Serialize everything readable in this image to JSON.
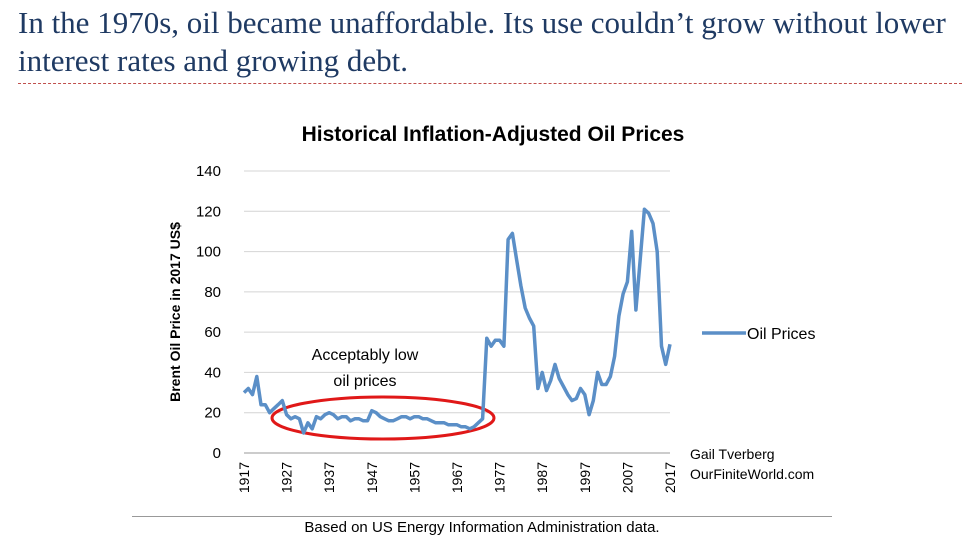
{
  "slide": {
    "title": "In the 1970s, oil became unaffordable. Its use couldn’t grow without lower interest rates and growing debt.",
    "footnote": "Based on US Energy Information Administration data.",
    "credit_lines": [
      "Gail Tverberg",
      "OurFiniteWorld.com"
    ]
  },
  "colors": {
    "line": "#5b8fc7",
    "ellipse": "#e01818",
    "title": "#1f3a63",
    "divider": "#c0504d"
  },
  "chart_data": {
    "type": "line",
    "title": "Historical Inflation-Adjusted Oil Prices",
    "xlabel": "",
    "ylabel": "Brent Oil Price in 2017 US$",
    "xlim": [
      1917,
      2017
    ],
    "ylim": [
      0,
      140
    ],
    "yticks": [
      0,
      20,
      40,
      60,
      80,
      100,
      120,
      140
    ],
    "xticks": [
      1917,
      1927,
      1937,
      1947,
      1957,
      1967,
      1977,
      1987,
      1997,
      2007,
      2017
    ],
    "grid": true,
    "legend": "right",
    "annotation": {
      "lines": [
        "Acceptably low",
        "oil prices"
      ]
    },
    "series": [
      {
        "name": "Oil Prices",
        "x": [
          1917,
          1918,
          1919,
          1920,
          1921,
          1922,
          1923,
          1924,
          1925,
          1926,
          1927,
          1928,
          1929,
          1930,
          1931,
          1932,
          1933,
          1934,
          1935,
          1936,
          1937,
          1938,
          1939,
          1940,
          1941,
          1942,
          1943,
          1944,
          1945,
          1946,
          1947,
          1948,
          1949,
          1950,
          1951,
          1952,
          1953,
          1954,
          1955,
          1956,
          1957,
          1958,
          1959,
          1960,
          1961,
          1962,
          1963,
          1964,
          1965,
          1966,
          1967,
          1968,
          1969,
          1970,
          1971,
          1972,
          1973,
          1974,
          1975,
          1976,
          1977,
          1978,
          1979,
          1980,
          1981,
          1982,
          1983,
          1984,
          1985,
          1986,
          1987,
          1988,
          1989,
          1990,
          1991,
          1992,
          1993,
          1994,
          1995,
          1996,
          1997,
          1998,
          1999,
          2000,
          2001,
          2002,
          2003,
          2004,
          2005,
          2006,
          2007,
          2008,
          2009,
          2010,
          2011,
          2012,
          2013,
          2014,
          2015,
          2016,
          2017
        ],
        "values": [
          30,
          32,
          29,
          38,
          24,
          24,
          20,
          22,
          24,
          26,
          19,
          17,
          18,
          17,
          10,
          15,
          12,
          18,
          17,
          19,
          20,
          19,
          17,
          18,
          18,
          16,
          17,
          17,
          16,
          16,
          21,
          20,
          18,
          17,
          16,
          16,
          17,
          18,
          18,
          17,
          18,
          18,
          17,
          17,
          16,
          15,
          15,
          15,
          14,
          14,
          14,
          13,
          13,
          12,
          13,
          15,
          17,
          57,
          53,
          56,
          56,
          53,
          106,
          109,
          96,
          83,
          72,
          67,
          63,
          32,
          40,
          31,
          36,
          44,
          37,
          33,
          29,
          26,
          27,
          32,
          29,
          19,
          26,
          40,
          34,
          34,
          38,
          48,
          68,
          79,
          85,
          110,
          71,
          96,
          121,
          119,
          114,
          100,
          53,
          44,
          54
        ]
      }
    ]
  }
}
